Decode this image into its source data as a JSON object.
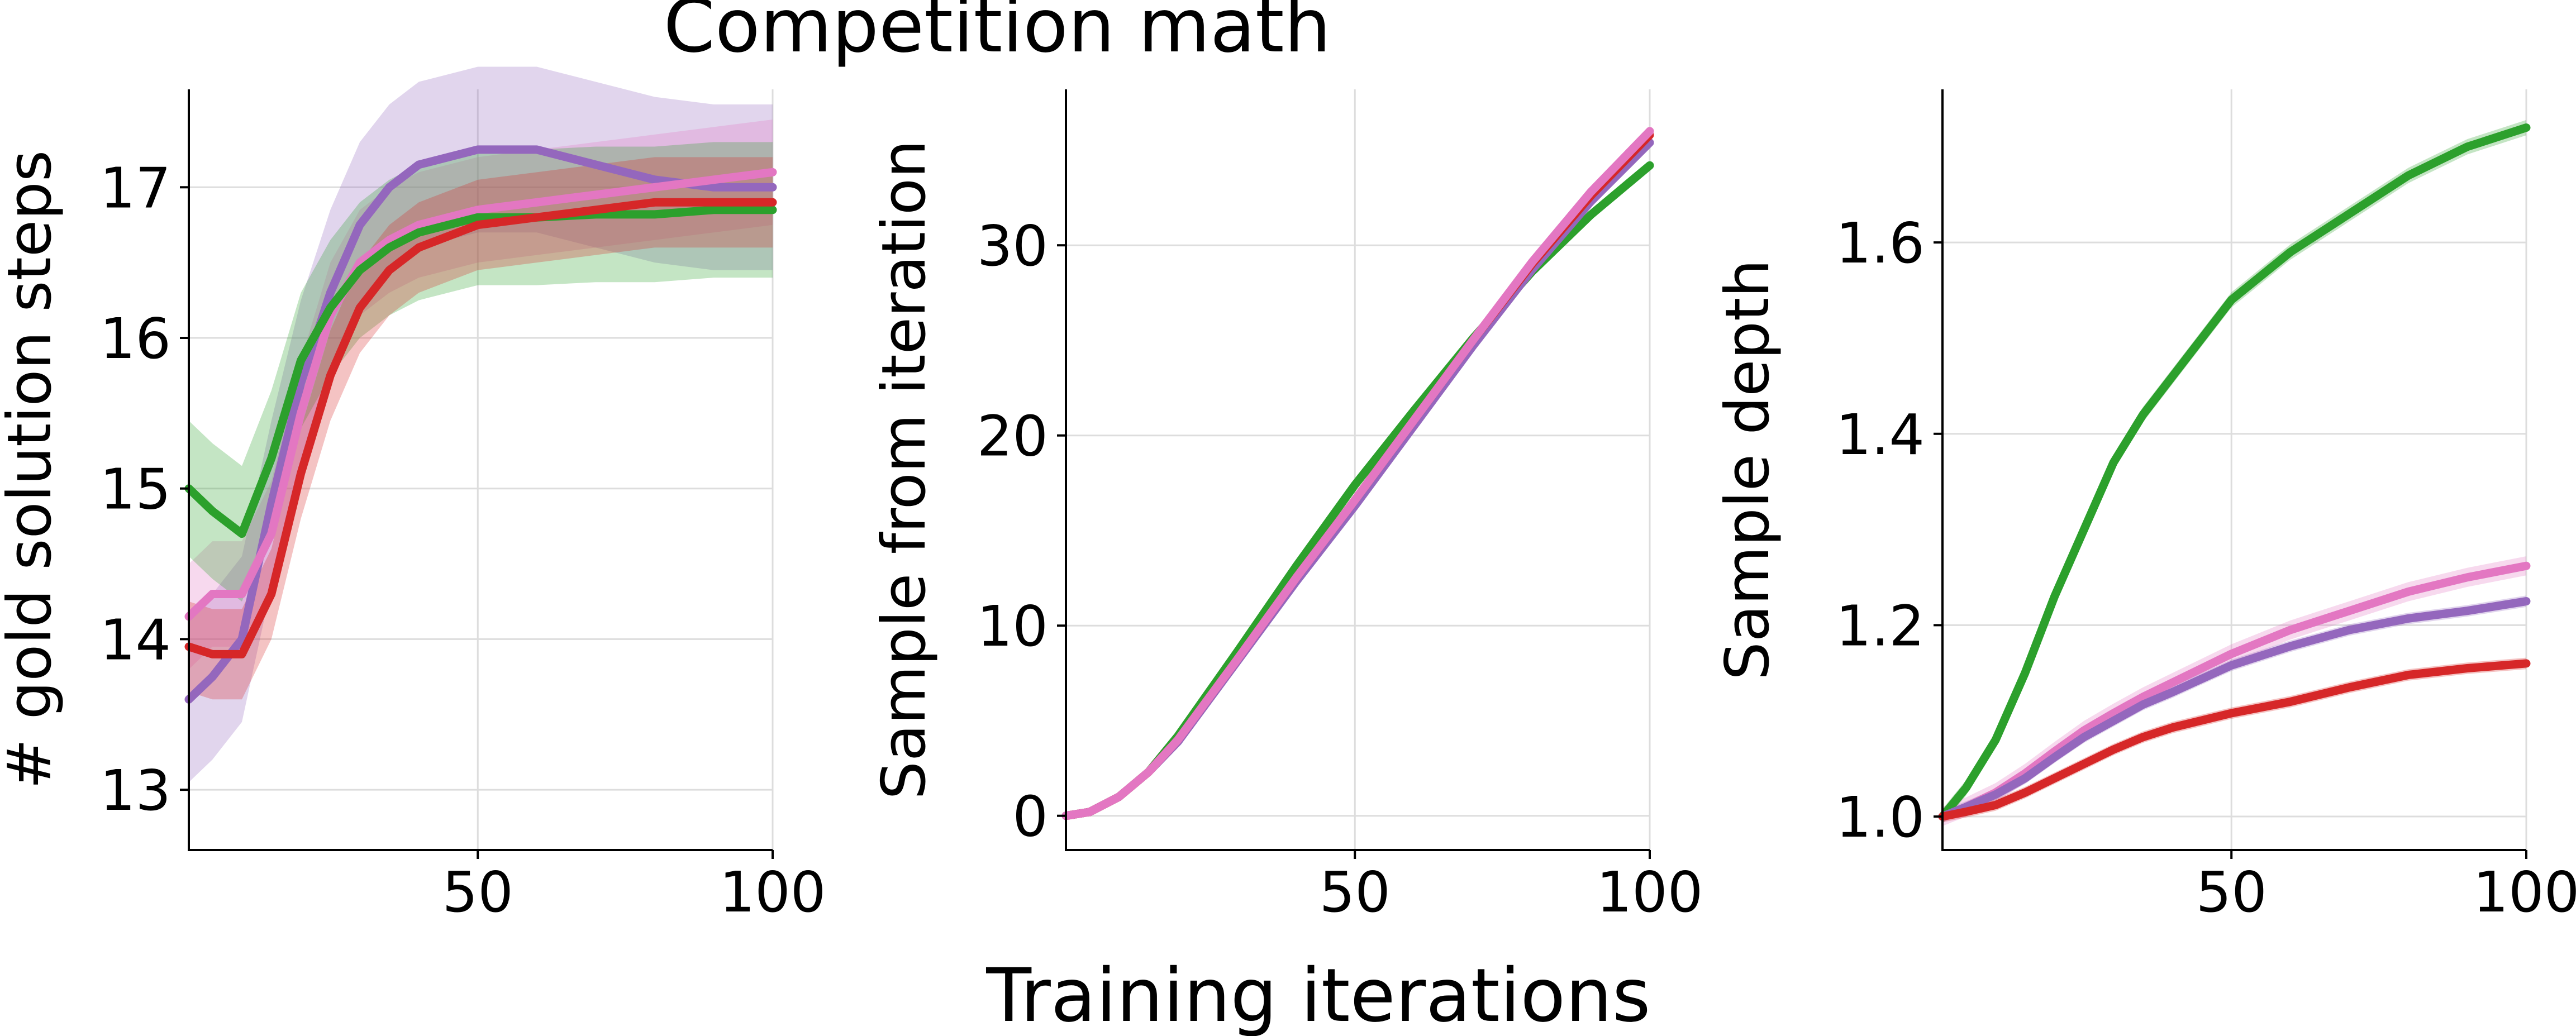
{
  "figure": {
    "title": "Competition math",
    "xlabel": "Training iterations"
  },
  "colors": {
    "green": "#2ca02c",
    "red": "#d62728",
    "purple": "#9467bd",
    "pink": "#e377c2"
  },
  "chart_data": [
    {
      "type": "line",
      "ylabel": "# gold solution steps",
      "xlim": [
        1,
        100
      ],
      "ylim": [
        12.6,
        17.65
      ],
      "xticks": [
        50,
        100
      ],
      "yticks": [
        13,
        14,
        15,
        16,
        17
      ],
      "grid": true,
      "x": [
        1,
        5,
        10,
        15,
        20,
        25,
        30,
        35,
        40,
        50,
        60,
        70,
        80,
        90,
        100
      ],
      "series": [
        {
          "color": "#9467bd",
          "band": 0.55,
          "values": [
            13.6,
            13.75,
            14.0,
            14.9,
            15.7,
            16.3,
            16.75,
            17.0,
            17.15,
            17.25,
            17.25,
            17.15,
            17.05,
            17.0,
            17.0
          ]
        },
        {
          "color": "#e377c2",
          "band": 0.35,
          "values": [
            14.15,
            14.3,
            14.3,
            14.7,
            15.5,
            16.15,
            16.5,
            16.65,
            16.75,
            16.85,
            16.9,
            16.95,
            17.0,
            17.05,
            17.1
          ]
        },
        {
          "color": "#2ca02c",
          "band": 0.45,
          "values": [
            15.0,
            14.85,
            14.7,
            15.2,
            15.85,
            16.2,
            16.45,
            16.6,
            16.7,
            16.8,
            16.8,
            16.82,
            16.82,
            16.85,
            16.85
          ]
        },
        {
          "color": "#d62728",
          "band": 0.3,
          "values": [
            13.95,
            13.9,
            13.9,
            14.3,
            15.1,
            15.75,
            16.2,
            16.45,
            16.6,
            16.75,
            16.8,
            16.85,
            16.9,
            16.9,
            16.9
          ]
        }
      ]
    },
    {
      "type": "line",
      "ylabel": "Sample from iteration",
      "xlim": [
        1,
        100
      ],
      "ylim": [
        -1.8,
        38.2
      ],
      "xticks": [
        50,
        100
      ],
      "yticks": [
        0,
        10,
        20,
        30
      ],
      "grid": true,
      "x": [
        1,
        5,
        10,
        15,
        20,
        30,
        40,
        50,
        60,
        70,
        80,
        90,
        100
      ],
      "series": [
        {
          "color": "#2ca02c",
          "band": 0.2,
          "values": [
            0,
            0.2,
            1.0,
            2.3,
            4.2,
            8.6,
            13.1,
            17.4,
            21.3,
            25.1,
            28.6,
            31.6,
            34.2
          ]
        },
        {
          "color": "#9467bd",
          "band": 0.2,
          "values": [
            0,
            0.2,
            1.0,
            2.3,
            3.9,
            8.1,
            12.3,
            16.3,
            20.5,
            24.7,
            28.7,
            32.3,
            35.4
          ]
        },
        {
          "color": "#d62728",
          "band": 0.2,
          "values": [
            0,
            0.2,
            1.0,
            2.3,
            4.0,
            8.2,
            12.5,
            16.6,
            20.8,
            25.0,
            29.0,
            32.6,
            35.8
          ]
        },
        {
          "color": "#e377c2",
          "band": 0.2,
          "values": [
            0,
            0.2,
            1.0,
            2.3,
            4.0,
            8.2,
            12.5,
            16.6,
            20.8,
            25.0,
            29.1,
            32.8,
            36.0
          ]
        }
      ]
    },
    {
      "type": "line",
      "ylabel": "Sample depth",
      "xlim": [
        1,
        100
      ],
      "ylim": [
        0.965,
        1.76
      ],
      "xticks": [
        50,
        100
      ],
      "yticks": [
        1.0,
        1.2,
        1.4,
        1.6
      ],
      "yticklabels": [
        "1.0",
        "1.2",
        "1.4",
        "1.6"
      ],
      "grid": true,
      "x": [
        1,
        5,
        10,
        15,
        20,
        25,
        30,
        35,
        40,
        50,
        60,
        70,
        80,
        90,
        100
      ],
      "series": [
        {
          "color": "#2ca02c",
          "band": 0.008,
          "values": [
            1.0,
            1.03,
            1.08,
            1.15,
            1.23,
            1.3,
            1.37,
            1.42,
            1.46,
            1.54,
            1.59,
            1.63,
            1.67,
            1.7,
            1.72
          ]
        },
        {
          "color": "#e377c2",
          "band": 0.01,
          "values": [
            1.0,
            1.01,
            1.025,
            1.045,
            1.068,
            1.09,
            1.108,
            1.125,
            1.14,
            1.17,
            1.195,
            1.215,
            1.235,
            1.25,
            1.262
          ]
        },
        {
          "color": "#9467bd",
          "band": 0.006,
          "values": [
            1.0,
            1.01,
            1.023,
            1.04,
            1.062,
            1.083,
            1.1,
            1.117,
            1.13,
            1.158,
            1.178,
            1.195,
            1.207,
            1.215,
            1.225
          ]
        },
        {
          "color": "#d62728",
          "band": 0.006,
          "values": [
            1.0,
            1.005,
            1.012,
            1.025,
            1.04,
            1.055,
            1.07,
            1.083,
            1.093,
            1.108,
            1.12,
            1.135,
            1.148,
            1.155,
            1.16
          ]
        }
      ]
    }
  ]
}
